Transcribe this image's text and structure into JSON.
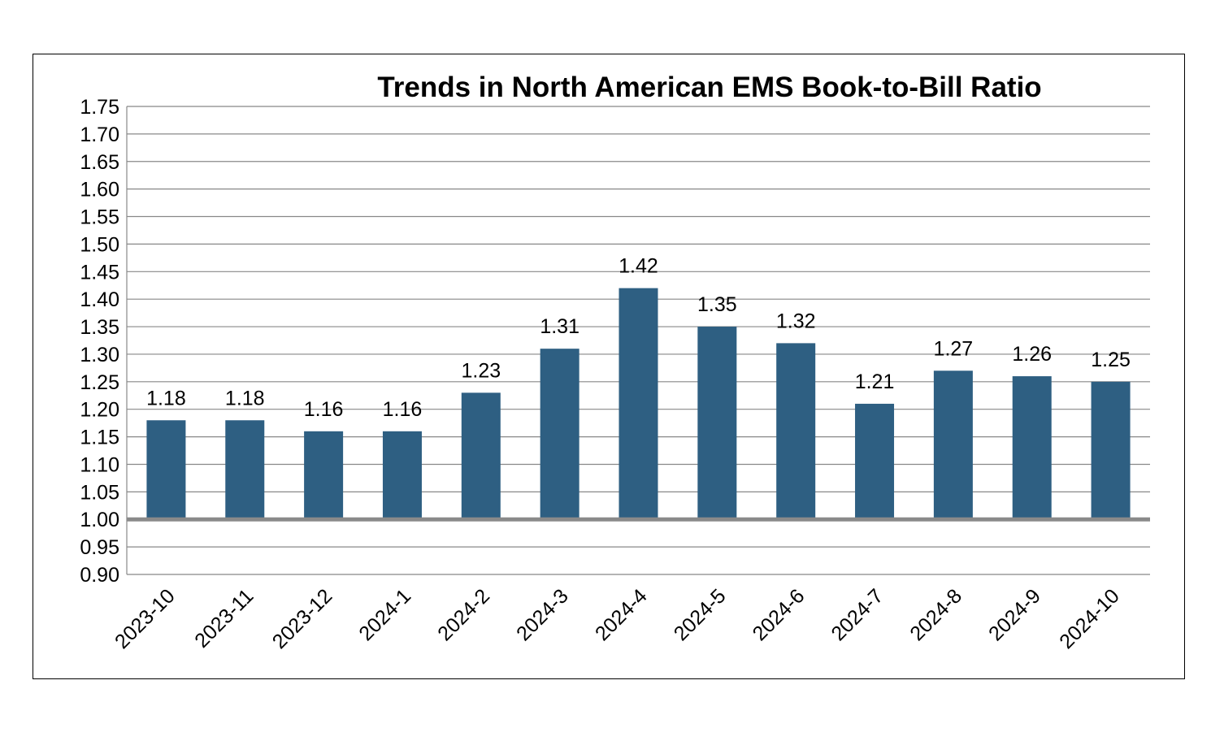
{
  "chart_data": {
    "type": "bar",
    "title": "Trends in North American EMS Book-to-Bill Ratio",
    "xlabel": "",
    "ylabel": "",
    "categories": [
      "2023-10",
      "2023-11",
      "2023-12",
      "2024-1",
      "2024-2",
      "2024-3",
      "2024-4",
      "2024-5",
      "2024-6",
      "2024-7",
      "2024-8",
      "2024-9",
      "2024-10"
    ],
    "values": [
      1.18,
      1.18,
      1.16,
      1.16,
      1.23,
      1.31,
      1.42,
      1.35,
      1.32,
      1.21,
      1.27,
      1.26,
      1.25
    ],
    "data_labels": [
      "1.18",
      "1.18",
      "1.16",
      "1.16",
      "1.23",
      "1.31",
      "1.42",
      "1.35",
      "1.32",
      "1.21",
      "1.27",
      "1.26",
      "1.25"
    ],
    "ylim": [
      0.9,
      1.75
    ],
    "y_ticks": [
      "0.90",
      "0.95",
      "1.00",
      "1.05",
      "1.10",
      "1.15",
      "1.20",
      "1.25",
      "1.30",
      "1.35",
      "1.40",
      "1.45",
      "1.50",
      "1.55",
      "1.60",
      "1.65",
      "1.70",
      "1.75"
    ],
    "baseline": 1.0,
    "grid": true,
    "legend": "none",
    "colors": {
      "bar": "#2e5f82",
      "grid": "#888888",
      "baseline": "#8a8a8a",
      "text": "#000000",
      "frame": "#000000"
    }
  }
}
